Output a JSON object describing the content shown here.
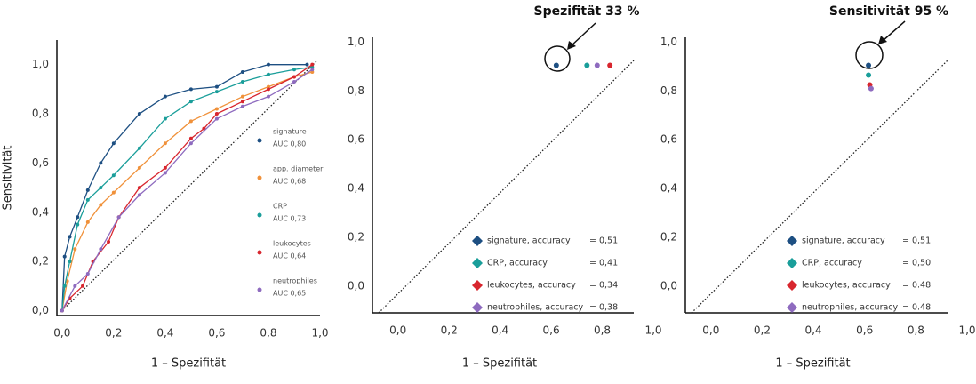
{
  "chart_data": [
    {
      "type": "line",
      "xlabel": "1 – Spezifität",
      "ylabel": "Sensitivität",
      "xlim": [
        -0.02,
        1.0
      ],
      "ylim": [
        -0.02,
        1.1
      ],
      "xticks": [
        {
          "value": 0,
          "label": "0,0"
        },
        {
          "value": 0.2,
          "label": "0,2"
        },
        {
          "value": 0.4,
          "label": "0,4"
        },
        {
          "value": 0.6,
          "label": "0,6"
        },
        {
          "value": 0.8,
          "label": "0,8"
        },
        {
          "value": 1.0,
          "label": "1,0"
        }
      ],
      "yticks": [
        {
          "value": 0,
          "label": "0,0"
        },
        {
          "value": 0.2,
          "label": "0,2"
        },
        {
          "value": 0.4,
          "label": "0,4"
        },
        {
          "value": 0.6,
          "label": "0,6"
        },
        {
          "value": 0.8,
          "label": "0,8"
        },
        {
          "value": 1.0,
          "label": "1,0"
        }
      ],
      "series": [
        {
          "name": "signature",
          "auc": "AUC 0,80",
          "color": "#1d4f82",
          "x": [
            0,
            0.01,
            0.03,
            0.06,
            0.1,
            0.15,
            0.2,
            0.3,
            0.4,
            0.5,
            0.6,
            0.7,
            0.8,
            0.95
          ],
          "values": [
            0,
            0.22,
            0.3,
            0.38,
            0.49,
            0.6,
            0.68,
            0.8,
            0.87,
            0.9,
            0.91,
            0.97,
            1.0,
            1.0
          ]
        },
        {
          "name": "app. diameter",
          "auc": "AUC 0,68",
          "color": "#f0913a",
          "x": [
            0,
            0.02,
            0.05,
            0.1,
            0.15,
            0.2,
            0.3,
            0.4,
            0.5,
            0.6,
            0.7,
            0.8,
            0.9,
            0.97
          ],
          "values": [
            0,
            0.12,
            0.25,
            0.36,
            0.43,
            0.48,
            0.58,
            0.68,
            0.77,
            0.82,
            0.87,
            0.91,
            0.95,
            0.97
          ]
        },
        {
          "name": "CRP",
          "auc": "AUC 0,73",
          "color": "#1a9e9a",
          "x": [
            0,
            0.01,
            0.03,
            0.06,
            0.1,
            0.15,
            0.2,
            0.3,
            0.4,
            0.5,
            0.6,
            0.7,
            0.8,
            0.9,
            0.97
          ],
          "values": [
            0,
            0.1,
            0.2,
            0.35,
            0.45,
            0.5,
            0.55,
            0.66,
            0.78,
            0.85,
            0.89,
            0.93,
            0.96,
            0.98,
            0.99
          ]
        },
        {
          "name": "leukocytes",
          "auc": "AUC 0,64",
          "color": "#d8262e",
          "x": [
            0,
            0.03,
            0.08,
            0.12,
            0.18,
            0.22,
            0.3,
            0.4,
            0.5,
            0.55,
            0.6,
            0.7,
            0.8,
            0.9,
            0.97
          ],
          "values": [
            0,
            0.05,
            0.1,
            0.2,
            0.28,
            0.38,
            0.5,
            0.58,
            0.7,
            0.74,
            0.8,
            0.85,
            0.9,
            0.95,
            1.0
          ]
        },
        {
          "name": "neutrophiles",
          "auc": "AUC 0,65",
          "color": "#8e6bbf",
          "x": [
            0,
            0.05,
            0.1,
            0.15,
            0.22,
            0.3,
            0.4,
            0.5,
            0.6,
            0.7,
            0.8,
            0.9,
            0.97
          ],
          "values": [
            0,
            0.1,
            0.15,
            0.25,
            0.38,
            0.47,
            0.56,
            0.68,
            0.78,
            0.83,
            0.87,
            0.93,
            0.98
          ]
        }
      ]
    },
    {
      "type": "scatter",
      "xlabel": "1 – Spezifität",
      "annotation": "Spezifität 33 %",
      "xlim": [
        -0.1,
        1.0
      ],
      "ylim": [
        -0.11,
        1.02
      ],
      "xticks": [
        {
          "value": 0,
          "label": "0,0"
        },
        {
          "value": 0.2,
          "label": "0,2"
        },
        {
          "value": 0.4,
          "label": "0,4"
        },
        {
          "value": 0.6,
          "label": "0,6"
        },
        {
          "value": 0.8,
          "label": "0,8"
        },
        {
          "value": 1.0,
          "label": "1,0"
        }
      ],
      "yticks": [
        {
          "value": 0,
          "label": "0,0"
        },
        {
          "value": 0.2,
          "label": "0,2"
        },
        {
          "value": 0.4,
          "label": "0,4"
        },
        {
          "value": 0.6,
          "label": "0,6"
        },
        {
          "value": 0.8,
          "label": "0,8"
        },
        {
          "value": 1.0,
          "label": "1,0"
        }
      ],
      "series": [
        {
          "name": "signature, accuracy",
          "accuracy": "= 0,51",
          "color": "#1d4f82",
          "x": [
            0.62
          ],
          "values": [
            0.905
          ]
        },
        {
          "name": "CRP, accuracy",
          "accuracy": "= 0,41",
          "color": "#1a9e9a",
          "x": [
            0.74
          ],
          "values": [
            0.905
          ]
        },
        {
          "name": "leukocytes, accuracy",
          "accuracy": "= 0,34",
          "color": "#d8262e",
          "x": [
            0.83
          ],
          "values": [
            0.905
          ]
        },
        {
          "name": "neutrophiles, accuracy",
          "accuracy": "= 0,38",
          "color": "#8e6bbf",
          "x": [
            0.78
          ],
          "values": [
            0.905
          ]
        }
      ]
    },
    {
      "type": "scatter",
      "xlabel": "1 – Spezifität",
      "annotation": "Sensitivität 95 %",
      "xlim": [
        -0.1,
        1.0
      ],
      "ylim": [
        -0.11,
        1.02
      ],
      "xticks": [
        {
          "value": 0,
          "label": "0,0"
        },
        {
          "value": 0.2,
          "label": "0,2"
        },
        {
          "value": 0.4,
          "label": "0,4"
        },
        {
          "value": 0.6,
          "label": "0,6"
        },
        {
          "value": 0.8,
          "label": "0,8"
        },
        {
          "value": 1.0,
          "label": "1,0"
        }
      ],
      "yticks": [
        {
          "value": 0,
          "label": "0,0"
        },
        {
          "value": 0.2,
          "label": "0,2"
        },
        {
          "value": 0.4,
          "label": "0,4"
        },
        {
          "value": 0.6,
          "label": "0,6"
        },
        {
          "value": 0.8,
          "label": "0,8"
        },
        {
          "value": 1.0,
          "label": "1,0"
        }
      ],
      "series": [
        {
          "name": "signature, accuracy",
          "accuracy": "= 0,51",
          "color": "#1d4f82",
          "x": [
            0.615
          ],
          "values": [
            0.905
          ]
        },
        {
          "name": "CRP, accuracy",
          "accuracy": "= 0,50",
          "color": "#1a9e9a",
          "x": [
            0.615
          ],
          "values": [
            0.865
          ]
        },
        {
          "name": "leukocytes, accuracy",
          "accuracy": "= 0.48",
          "color": "#d8262e",
          "x": [
            0.62
          ],
          "values": [
            0.825
          ]
        },
        {
          "name": "neutrophiles, accuracy",
          "accuracy": "= 0.48",
          "color": "#8e6bbf",
          "x": [
            0.625
          ],
          "values": [
            0.81
          ]
        }
      ]
    }
  ]
}
